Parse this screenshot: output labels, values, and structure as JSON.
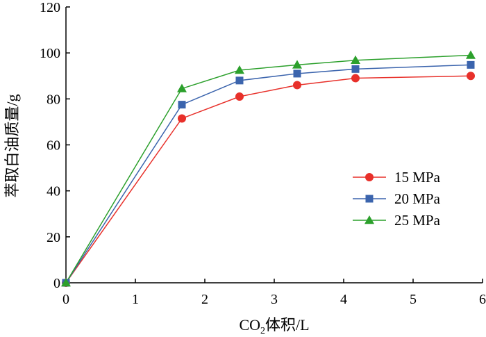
{
  "chart_data": {
    "type": "line",
    "title": "",
    "xlabel": {
      "prefix": "CO",
      "subscript": "2",
      "suffix": "体积/L"
    },
    "ylabel": "萃取白油质量/g",
    "xlim": [
      0,
      6
    ],
    "ylim": [
      0,
      120
    ],
    "x_ticks": [
      "0",
      "1",
      "2",
      "3",
      "4",
      "5",
      "6"
    ],
    "y_ticks": [
      "0",
      "20",
      "40",
      "60",
      "80",
      "100",
      "120"
    ],
    "grid": false,
    "legend_position": "center-right",
    "x": [
      0,
      1.67,
      2.5,
      3.33,
      4.17,
      5.83
    ],
    "series": [
      {
        "name": "15 MPa",
        "marker": "circle",
        "color": "#e8302a",
        "values": [
          0,
          71.5,
          81,
          86,
          89,
          90
        ]
      },
      {
        "name": "20 MPa",
        "marker": "square",
        "color": "#3b64ad",
        "values": [
          0,
          77.5,
          88,
          91,
          93,
          94.8
        ]
      },
      {
        "name": "25 MPa",
        "marker": "triangle",
        "color": "#2ca02c",
        "values": [
          0,
          84.5,
          92.5,
          94.8,
          96.8,
          99
        ]
      }
    ]
  }
}
